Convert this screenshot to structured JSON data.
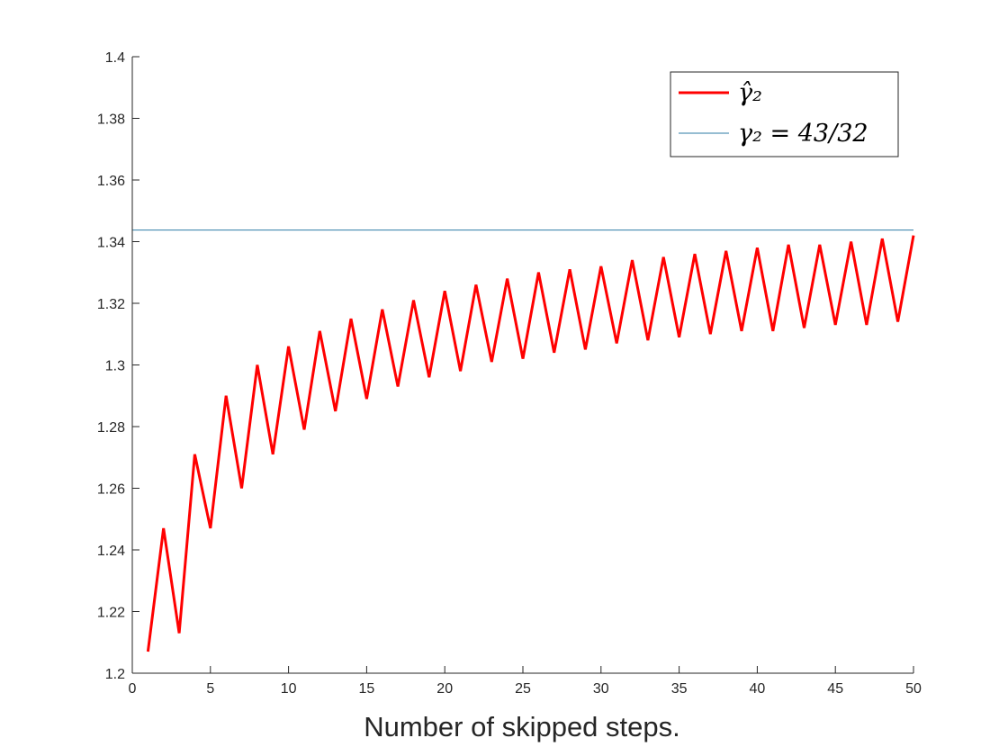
{
  "chart_data": {
    "type": "line",
    "xlabel": "Number of skipped steps.",
    "ylabel": "",
    "title": "",
    "xlim": [
      0,
      50
    ],
    "ylim": [
      1.2,
      1.4
    ],
    "xticks": [
      "0",
      "5",
      "10",
      "15",
      "20",
      "25",
      "30",
      "35",
      "40",
      "45",
      "50"
    ],
    "yticks": [
      "1.2",
      "1.22",
      "1.24",
      "1.26",
      "1.28",
      "1.3",
      "1.32",
      "1.34",
      "1.36",
      "1.38",
      "1.4"
    ],
    "grid": false,
    "legend_position": "top-right",
    "series": [
      {
        "name": "γ̂₂",
        "color": "#ff0000",
        "x": [
          1,
          2,
          3,
          4,
          5,
          6,
          7,
          8,
          9,
          10,
          11,
          12,
          13,
          14,
          15,
          16,
          17,
          18,
          19,
          20,
          21,
          22,
          23,
          24,
          25,
          26,
          27,
          28,
          29,
          30,
          31,
          32,
          33,
          34,
          35,
          36,
          37,
          38,
          39,
          40,
          41,
          42,
          43,
          44,
          45,
          46,
          47,
          48,
          49,
          50
        ],
        "y": [
          1.207,
          1.247,
          1.213,
          1.271,
          1.247,
          1.29,
          1.26,
          1.3,
          1.271,
          1.306,
          1.279,
          1.311,
          1.285,
          1.315,
          1.289,
          1.318,
          1.293,
          1.321,
          1.296,
          1.324,
          1.298,
          1.326,
          1.301,
          1.328,
          1.302,
          1.33,
          1.304,
          1.331,
          1.305,
          1.332,
          1.307,
          1.334,
          1.308,
          1.335,
          1.309,
          1.336,
          1.31,
          1.337,
          1.311,
          1.338,
          1.311,
          1.339,
          1.312,
          1.339,
          1.313,
          1.34,
          1.313,
          1.341,
          1.314,
          1.342
        ]
      },
      {
        "name": "γ₂ = 43/32",
        "color": "#2e7ba6",
        "constant": 1.34375
      }
    ]
  }
}
